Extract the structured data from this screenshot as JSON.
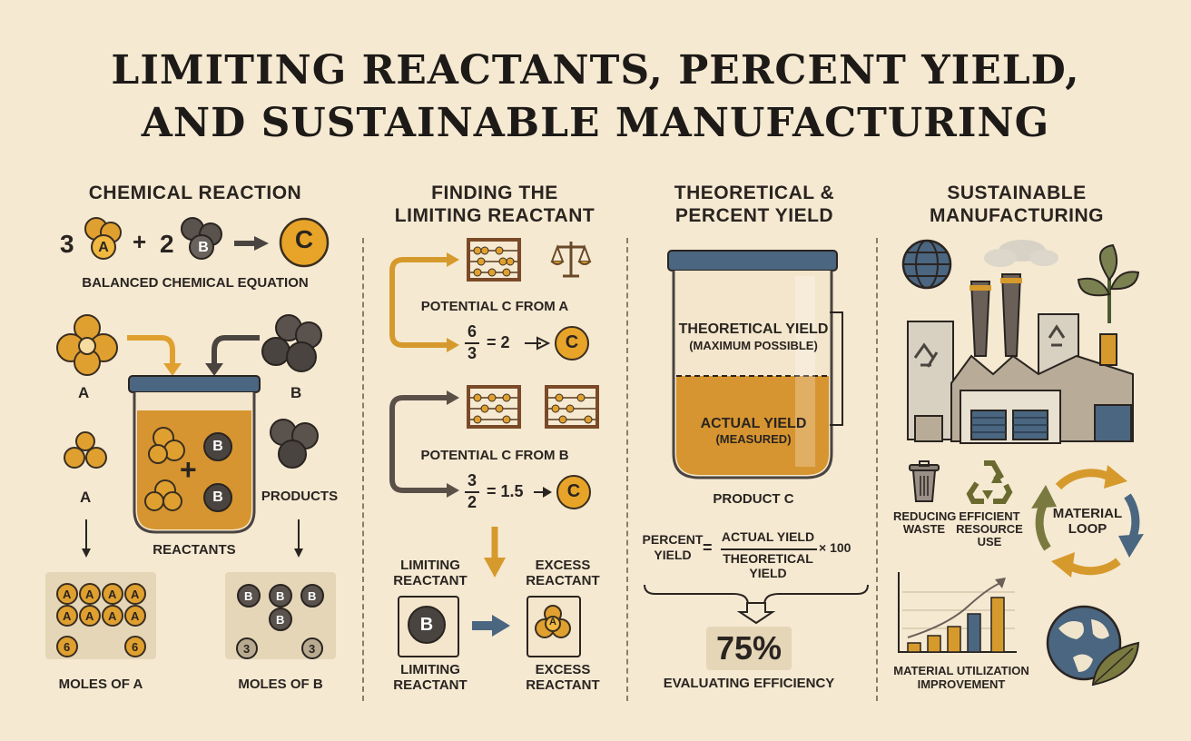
{
  "title": {
    "line1": "LIMITING REACTANTS, PERCENT YIELD,",
    "line2": "AND SUSTAINABLE MANUFACTURING"
  },
  "colors": {
    "background": "#f5e9d2",
    "amber": "#e0a030",
    "dark_grey": "#4a4440",
    "slate_blue": "#4a6680",
    "olive": "#7a7a40",
    "beige_panel": "#e5d6b8"
  },
  "panel1": {
    "heading": "CHEMICAL REACTION",
    "equation": {
      "coef_a": "3",
      "mol_a": "A",
      "plus": "+",
      "coef_b": "2",
      "mol_b": "B",
      "product": "C"
    },
    "equation_caption": "BALANCED CHEMICAL EQUATION",
    "label_a": "A",
    "label_b": "B",
    "label_a2": "A",
    "label_products": "PRODUCTS",
    "jar_plus": "+",
    "jar_b": "B",
    "jar_caption": "REACTANTS",
    "moles_a": {
      "letter": "A",
      "count": "6",
      "caption": "MOLES OF A"
    },
    "moles_b": {
      "letter": "B",
      "count": "3",
      "caption": "MOLES OF B"
    }
  },
  "panel2": {
    "heading_line1": "FINDING THE",
    "heading_line2": "LIMITING REACTANT",
    "from_a": {
      "caption": "POTENTIAL C FROM A",
      "num": "6",
      "den": "3",
      "result": "= 2",
      "product": "C"
    },
    "from_b": {
      "caption": "POTENTIAL C FROM B",
      "num": "3",
      "den": "2",
      "result": "= 1.5",
      "product": "C"
    },
    "limiting_top": "LIMITING REACTANT",
    "excess_top": "EXCESS REACTANT",
    "limiting_letter": "B",
    "excess_letter": "A",
    "limiting_bottom": "LIMITING REACTANT",
    "excess_bottom": "EXCESS REACTANT"
  },
  "panel3": {
    "heading_line1": "THEORETICAL &",
    "heading_line2": "PERCENT YIELD",
    "theoretical": "THEORETICAL YIELD",
    "theoretical_sub": "(MAXIMUM POSSIBLE)",
    "actual": "ACTUAL YIELD",
    "actual_sub": "(MEASURED)",
    "jar_caption": "PRODUCT C",
    "formula": {
      "left1": "PERCENT",
      "left2": "YIELD",
      "eq": "=",
      "numerator": "ACTUAL YIELD",
      "denominator1": "THEORETICAL",
      "denominator2": "YIELD",
      "times": "× 100"
    },
    "percent": "75%",
    "percent_caption": "EVALUATING EFFICIENCY"
  },
  "panel4": {
    "heading_line1": "SUSTAINABLE",
    "heading_line2": "MANUFACTURING",
    "reducing_waste": "REDUCING WASTE",
    "efficient_line1": "EFFICIENT",
    "efficient_line2": "RESOURCE",
    "efficient_line3": "USE",
    "loop_line1": "MATERIAL",
    "loop_line2": "LOOP",
    "utilization_line1": "MATERIAL UTILIZATION",
    "utilization_line2": "IMPROVEMENT",
    "icons": [
      "globe-icon",
      "factory-icon",
      "plant-icon",
      "trash-icon",
      "recycle-icon",
      "bar-chart-icon",
      "earth-leaf-icon"
    ]
  }
}
